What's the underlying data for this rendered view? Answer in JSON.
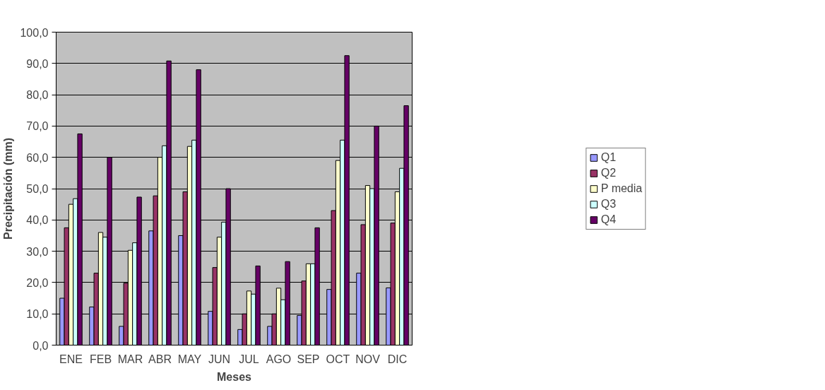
{
  "chart_data": {
    "type": "bar",
    "xlabel": "Meses",
    "ylabel": "Precipitación (mm)",
    "categories": [
      "ENE",
      "FEB",
      "MAR",
      "ABR",
      "MAY",
      "JUN",
      "JUL",
      "AGO",
      "SEP",
      "OCT",
      "NOV",
      "DIC"
    ],
    "series": [
      {
        "name": "Q1",
        "color": "#9999ff",
        "values": [
          15,
          12.2,
          6,
          36.5,
          35,
          10.8,
          5,
          6,
          9.5,
          17.8,
          23,
          18.3
        ]
      },
      {
        "name": "Q2",
        "color": "#993366",
        "values": [
          37.5,
          23,
          19.8,
          47.7,
          49,
          24.8,
          10,
          10,
          20.5,
          43,
          38.5,
          39
        ]
      },
      {
        "name": "P media",
        "color": "#ffffcc",
        "values": [
          45,
          36,
          30.3,
          60,
          63.5,
          34.5,
          17.3,
          18.2,
          26,
          59,
          51,
          49
        ]
      },
      {
        "name": "Q3",
        "color": "#ccffff",
        "values": [
          46.8,
          34.5,
          32.7,
          63.7,
          65.5,
          39.3,
          16.3,
          14.5,
          26,
          65.5,
          50,
          56.5
        ]
      },
      {
        "name": "Q4",
        "color": "#660066",
        "values": [
          67.5,
          60,
          47.3,
          90.8,
          88,
          50,
          25.3,
          26.7,
          37.5,
          92.5,
          70,
          76.5
        ]
      }
    ],
    "ylim": [
      0,
      100
    ],
    "yticks": [
      {
        "value": 0,
        "label": "0,0"
      },
      {
        "value": 10,
        "label": "10,0"
      },
      {
        "value": 20,
        "label": "20,0"
      },
      {
        "value": 30,
        "label": "30,0"
      },
      {
        "value": 40,
        "label": "40,0"
      },
      {
        "value": 50,
        "label": "50,0"
      },
      {
        "value": 60,
        "label": "60,0"
      },
      {
        "value": 70,
        "label": "70,0"
      },
      {
        "value": 80,
        "label": "80,0"
      },
      {
        "value": 90,
        "label": "90,0"
      },
      {
        "value": 100,
        "label": "100,0"
      }
    ],
    "grid": "y",
    "legend": "right"
  }
}
